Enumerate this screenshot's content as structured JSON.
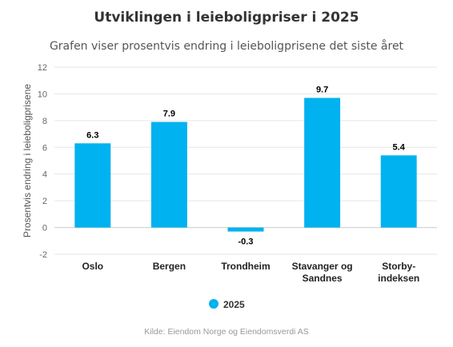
{
  "chart_data": {
    "type": "bar",
    "title": "Utviklingen i leieboligpriser i 2025",
    "subtitle": "Grafen viser prosentvis endring i leieboligprisene det siste året",
    "ylabel": "Prosentvis endring i leieboligprisene",
    "xlabel": "",
    "categories": [
      [
        "Oslo"
      ],
      [
        "Bergen"
      ],
      [
        "Trondheim"
      ],
      [
        "Stavanger og",
        "Sandnes"
      ],
      [
        "Storby-",
        "indeksen"
      ]
    ],
    "series": [
      {
        "name": "2025",
        "color": "#00b2ef",
        "values": [
          6.3,
          7.9,
          -0.3,
          9.7,
          5.4
        ]
      }
    ],
    "ylim": [
      -2,
      12
    ],
    "yticks": [
      -2,
      0,
      2,
      4,
      6,
      8,
      10,
      12
    ],
    "grid": true,
    "legend": "bottom-center",
    "credit": "Kilde: Eiendom Norge og Eiendomsverdi AS"
  }
}
